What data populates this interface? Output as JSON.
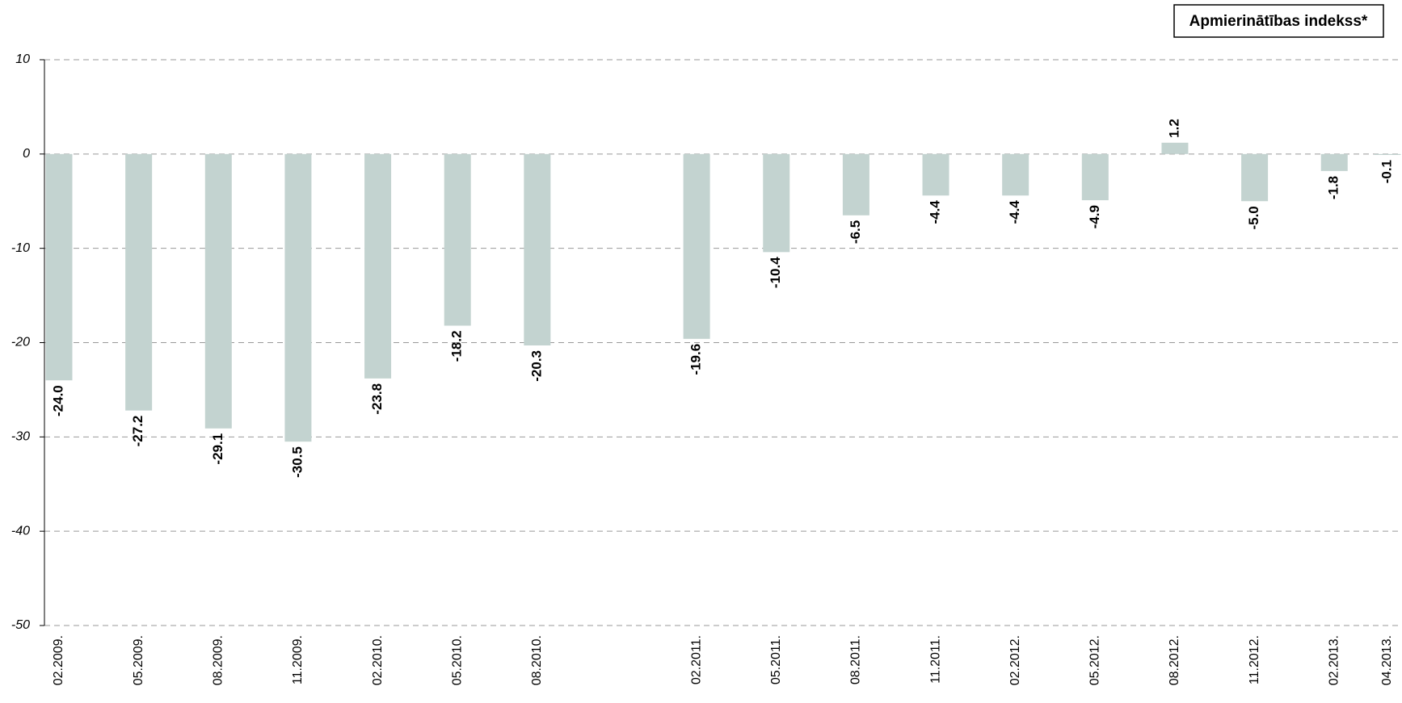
{
  "chart_data": {
    "type": "bar",
    "legend": "Apmierinātības indekss*",
    "categories": [
      "02.2009.",
      "05.2009.",
      "08.2009.",
      "11.2009.",
      "02.2010.",
      "05.2010.",
      "08.2010.",
      "02.2011.",
      "05.2011.",
      "08.2011.",
      "11.2011.",
      "02.2012.",
      "05.2012.",
      "08.2012.",
      "11.2012.",
      "02.2013.",
      "04.2013."
    ],
    "values": [
      -24.0,
      -27.2,
      -29.1,
      -30.5,
      -23.8,
      -18.2,
      -20.3,
      -19.6,
      -10.4,
      -6.5,
      -4.4,
      -4.4,
      -4.9,
      1.2,
      -5.0,
      -1.8,
      -0.1
    ],
    "value_labels": [
      "-24.0",
      "-27.2",
      "-29.1",
      "-30.5",
      "-23.8",
      "-18.2",
      "-20.3",
      "-19.6",
      "-10.4",
      "-6.5",
      "-4.4",
      "-4.4",
      "-4.9",
      "1.2",
      "-5.0",
      "-1.8",
      "-0.1"
    ],
    "color": "#c3d3d0",
    "ylim": [
      -50,
      10
    ],
    "yticks": [
      10,
      0,
      -10,
      -20,
      -30,
      -40,
      -50
    ],
    "grid": true
  }
}
